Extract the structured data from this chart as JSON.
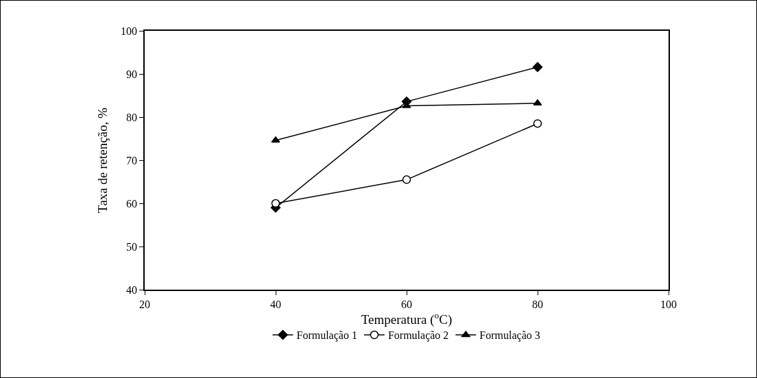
{
  "chart_data": {
    "type": "line",
    "xlabel": "Temperatura ($^{o}$C)",
    "ylabel": "Taxa de retenção, %",
    "x": [
      40,
      60,
      80
    ],
    "series": [
      {
        "name": "Formulação 1",
        "color": "#000000",
        "marker": "diamond",
        "values": [
          59.0,
          83.6,
          91.6
        ]
      },
      {
        "name": "Formulação 2",
        "color": "#000000",
        "marker": "circle",
        "values": [
          60.0,
          65.5,
          78.5
        ]
      },
      {
        "name": "Formulação 3",
        "color": "#000000",
        "marker": "triangle",
        "values": [
          74.6,
          82.6,
          83.2
        ]
      }
    ],
    "xlim": [
      20,
      100
    ],
    "xticks": [
      20,
      40,
      60,
      80,
      100
    ],
    "ylim": [
      40,
      100
    ],
    "yticks": [
      40,
      50,
      60,
      70,
      80,
      90,
      100
    ],
    "grid": false,
    "legend": "bottom",
    "line_style": "solid"
  }
}
